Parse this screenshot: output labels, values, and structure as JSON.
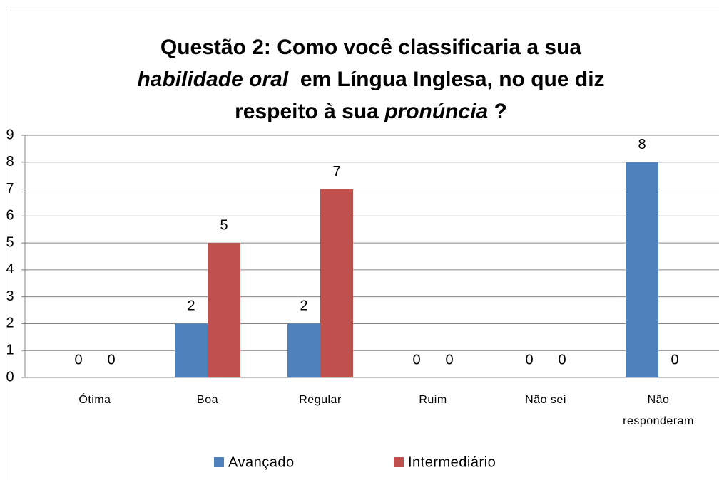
{
  "chart_data": {
    "type": "bar",
    "title": [
      [
        {
          "text": "Questão 2: Como você classificaria a sua",
          "italic": false
        }
      ],
      [
        {
          "text": "habilidade oral",
          "italic": true
        },
        {
          "text": "  em Língua Inglesa, no que diz",
          "italic": false
        }
      ],
      [
        {
          "text": "respeito à sua ",
          "italic": false
        },
        {
          "text": "pronúncia",
          "italic": true
        },
        {
          "text": " ?",
          "italic": false
        }
      ]
    ],
    "categories": [
      "Ótima",
      "Boa",
      "Regular",
      "Ruim",
      "Não sei",
      "Não responderam"
    ],
    "series": [
      {
        "name": "Avançado",
        "color": "#4f81bd",
        "values": [
          0,
          2,
          2,
          0,
          0,
          8
        ]
      },
      {
        "name": "Intermediário",
        "color": "#c0504d",
        "values": [
          0,
          5,
          7,
          0,
          0,
          0
        ]
      }
    ],
    "ylim": [
      0,
      9
    ],
    "yticks": [
      0,
      1,
      2,
      3,
      4,
      5,
      6,
      7,
      8,
      9
    ],
    "grid": true,
    "legend": "bottom"
  }
}
